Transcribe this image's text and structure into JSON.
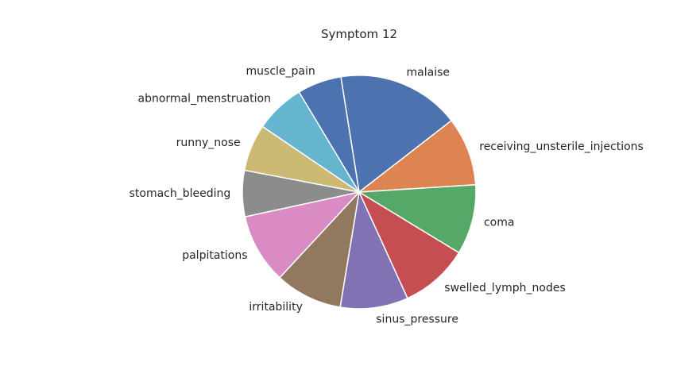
{
  "chart_data": {
    "type": "pie",
    "title": "Symptom 12",
    "start_angle_deg": 99,
    "direction": "clockwise",
    "slices": [
      {
        "label": "malaise",
        "value": 17.0,
        "color": "#4c72b0"
      },
      {
        "label": "receiving_unsterile_injections",
        "value": 9.5,
        "color": "#dd8452"
      },
      {
        "label": "coma",
        "value": 9.7,
        "color": "#55a868"
      },
      {
        "label": "swelled_lymph_nodes",
        "value": 9.5,
        "color": "#c44e52"
      },
      {
        "label": "sinus_pressure",
        "value": 9.4,
        "color": "#8172b3"
      },
      {
        "label": "irritability",
        "value": 9.3,
        "color": "#937860"
      },
      {
        "label": "palpitations",
        "value": 9.7,
        "color": "#da8bc3"
      },
      {
        "label": "stomach_bleeding",
        "value": 6.4,
        "color": "#8c8c8c"
      },
      {
        "label": "runny_nose",
        "value": 6.5,
        "color": "#ccb974"
      },
      {
        "label": "abnormal_menstruation",
        "value": 6.9,
        "color": "#64b5cd"
      },
      {
        "label": "muscle_pain",
        "value": 6.1,
        "color": "#4c72b0"
      }
    ]
  }
}
